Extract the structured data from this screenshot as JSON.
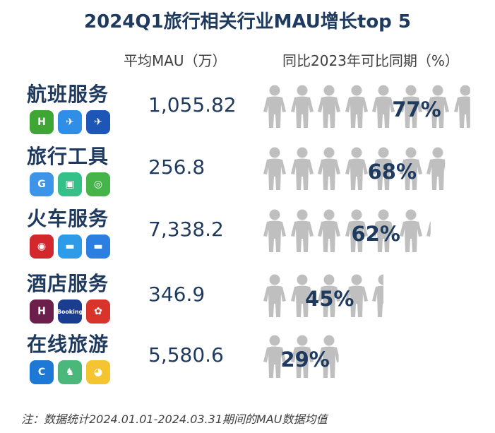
{
  "title": "2024Q1旅行相关行业MAU增长top 5",
  "headers": {
    "mau": "平均MAU（万）",
    "yoy": "同比2023年可比同期（%）"
  },
  "note": "注：数据统计2024.01.01-2024.03.31期间的MAU数据均值",
  "colors": {
    "title": "#1F3A5F",
    "person": "#BFBFBF"
  },
  "chart_data": {
    "type": "table",
    "categories": [
      "航班服务",
      "旅行工具",
      "火车服务",
      "酒店服务",
      "在线旅游"
    ],
    "series": [
      {
        "name": "平均MAU（万）",
        "values": [
          "1,055.82",
          "256.8",
          "7,338.2",
          "346.9",
          "5,580.6"
        ]
      },
      {
        "name": "同比2023年可比同期（%）",
        "values": [
          "77%",
          "68%",
          "62%",
          "45%",
          "29%"
        ]
      }
    ],
    "yoy_numeric": [
      77,
      68,
      62,
      45,
      29
    ],
    "rows": [
      {
        "category": "航班服务",
        "mau": "1,055.82",
        "yoy": "77%",
        "apps": [
          {
            "icon": "flight-app-1-icon",
            "glyph": "H",
            "color": "#3FA535"
          },
          {
            "icon": "flight-app-2-icon",
            "glyph": "✈",
            "color": "#2F8FE6"
          },
          {
            "icon": "flight-app-3-icon",
            "glyph": "✈",
            "color": "#1E56B8"
          }
        ]
      },
      {
        "category": "旅行工具",
        "mau": "256.8",
        "yoy": "68%",
        "apps": [
          {
            "icon": "travel-tool-app-1-icon",
            "glyph": "G",
            "color": "#3C95E8"
          },
          {
            "icon": "travel-tool-app-2-icon",
            "glyph": "▣",
            "color": "#35C08A"
          },
          {
            "icon": "travel-tool-app-3-icon",
            "glyph": "◎",
            "color": "#45B54A"
          }
        ]
      },
      {
        "category": "火车服务",
        "mau": "7,338.2",
        "yoy": "62%",
        "apps": [
          {
            "icon": "train-app-1-icon",
            "glyph": "◉",
            "color": "#D3272E"
          },
          {
            "icon": "train-app-2-icon",
            "glyph": "▬",
            "color": "#2E9BE8"
          },
          {
            "icon": "train-app-3-icon",
            "glyph": "▬",
            "color": "#2A7FE0"
          }
        ]
      },
      {
        "category": "酒店服务",
        "mau": "346.9",
        "yoy": "45%",
        "apps": [
          {
            "icon": "hotel-app-1-icon",
            "glyph": "H",
            "color": "#6B1F4A"
          },
          {
            "icon": "booking-app-icon",
            "glyph": "Booking",
            "color": "#1A3D8F"
          },
          {
            "icon": "hotel-app-3-icon",
            "glyph": "✿",
            "color": "#D8342B"
          }
        ]
      },
      {
        "category": "在线旅游",
        "mau": "5,580.6",
        "yoy": "29%",
        "apps": [
          {
            "icon": "ota-app-1-icon",
            "glyph": "C",
            "color": "#1E78D6"
          },
          {
            "icon": "ota-app-2-icon",
            "glyph": "♞",
            "color": "#49B87A"
          },
          {
            "icon": "ota-app-3-icon",
            "glyph": "◕",
            "color": "#F5C531"
          }
        ]
      }
    ]
  }
}
